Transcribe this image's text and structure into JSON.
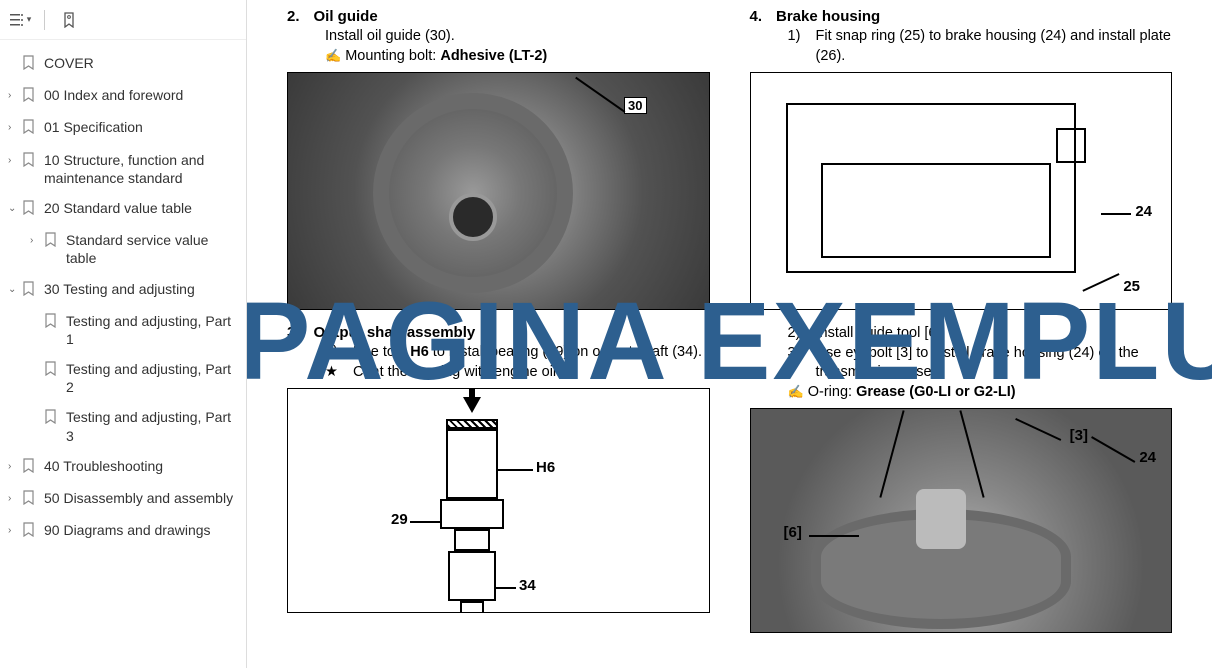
{
  "toolbar": {
    "outline_icon": "outline-icon",
    "bookmark_ribbon": "bookmark-ribbon"
  },
  "nav": {
    "items": [
      {
        "label": "COVER",
        "chevron": false,
        "indent": 0
      },
      {
        "label": "00 Index and foreword",
        "chevron": true,
        "indent": 0
      },
      {
        "label": "01 Specification",
        "chevron": true,
        "indent": 0
      },
      {
        "label": "10 Structure, function and maintenance standard",
        "chevron": true,
        "indent": 0
      },
      {
        "label": "20 Standard value table",
        "chevron": true,
        "chev_open": true,
        "indent": 0
      },
      {
        "label": "Standard service value table",
        "chevron": true,
        "indent": 1
      },
      {
        "label": "30 Testing and adjusting",
        "chevron": true,
        "chev_open": true,
        "indent": 0
      },
      {
        "label": "Testing and adjusting, Part 1",
        "chevron": false,
        "indent": 1
      },
      {
        "label": "Testing and adjusting, Part 2",
        "chevron": false,
        "indent": 1
      },
      {
        "label": "Testing and adjusting, Part 3",
        "chevron": false,
        "indent": 1
      },
      {
        "label": "40 Troubleshooting",
        "chevron": true,
        "indent": 0
      },
      {
        "label": "50 Disassembly and assembly",
        "chevron": true,
        "indent": 0
      },
      {
        "label": "90 Diagrams and drawings",
        "chevron": true,
        "indent": 0
      }
    ]
  },
  "content": {
    "left": {
      "sec2": {
        "num": "2.",
        "title": "Oil guide",
        "line1": "Install oil guide (30).",
        "glyph": "✍",
        "line2_pre": "Mounting bolt: ",
        "line2_bold": "Adhesive (LT-2)",
        "callouts": {
          "c30": "30"
        }
      },
      "sec3": {
        "num": "3.",
        "title": "Output shaft assembly",
        "sub_n": "1)",
        "line1a": "Use tool ",
        "line1b": "H6",
        "line1c": " to install bearing (29) on output shaft (34).",
        "star": "★",
        "line2": "Coat the bearing with engine oil.",
        "callouts": {
          "h6": "H6",
          "c29": "29",
          "c34": "34"
        }
      }
    },
    "right": {
      "sec4": {
        "num": "4.",
        "title": "Brake housing",
        "sub_n": "1)",
        "line1": "Fit snap ring (25) to brake housing (24) and install plate (26).",
        "callouts": {
          "c24": "24",
          "c25": "25"
        }
      },
      "sec4b": {
        "sub2_n": "2)",
        "sub2": "Install guide tool [6].",
        "sub3_n": "3)",
        "sub3": "Use eyebolt [3] to install brake housing (24) on the transmission case.",
        "glyph": "✍",
        "line_pre": "O-ring: ",
        "line_bold": "Grease (G0-LI or G2-LI)",
        "callouts": {
          "b3": "[3]",
          "b6": "[6]",
          "c24": "24"
        }
      }
    }
  },
  "watermark": "PAGINA EXEMPLU",
  "colors": {
    "text": "#222222",
    "watermark": "#2d5f8f",
    "sidebar_text": "#333333",
    "divider": "#dddddd"
  }
}
